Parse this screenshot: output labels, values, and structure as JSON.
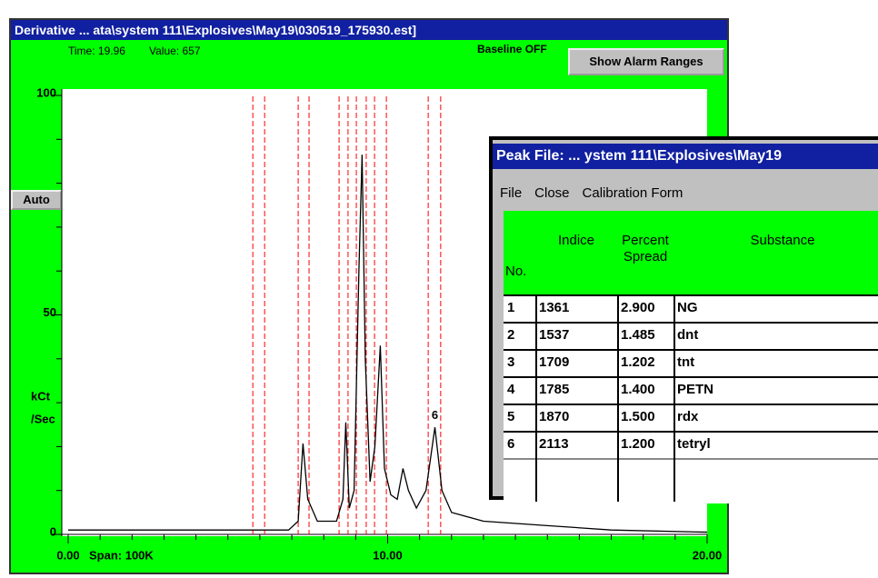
{
  "main_window": {
    "title": "Derivative ... ata\\system 111\\Explosives\\May19\\030519_175930.est]",
    "time_label": "Time: 19.96",
    "value_label": "Value: 657",
    "baseline": "Baseline OFF",
    "alarm_button": "Show Alarm Ranges",
    "auto_button": "Auto",
    "span": "Span: 100K"
  },
  "chart_data": {
    "type": "line",
    "y_label_lines": [
      "kCt",
      "/Sec"
    ],
    "xlim": [
      0,
      20
    ],
    "ylim": [
      0,
      100
    ],
    "xticks": [
      {
        "value": 0,
        "label": "0.00"
      },
      {
        "value": 10,
        "label": "10.00"
      },
      {
        "value": 20,
        "label": "20.00"
      }
    ],
    "xticks_minor": [
      1,
      2,
      3,
      4,
      5,
      6,
      7,
      8,
      9,
      11,
      12,
      13,
      14,
      15,
      16,
      17,
      18,
      19
    ],
    "yticks": [
      0,
      50,
      100
    ],
    "yticks_minor": [
      10,
      20,
      30,
      40,
      60,
      70,
      80,
      90
    ],
    "series": [
      {
        "color": "#000000",
        "x": [
          0,
          5,
          6.9,
          7.2,
          7.35,
          7.5,
          7.8,
          8.4,
          8.6,
          8.69,
          8.8,
          8.95,
          9.1,
          9.2,
          9.3,
          9.45,
          9.6,
          9.77,
          9.9,
          10.1,
          10.3,
          10.48,
          10.65,
          10.9,
          11.2,
          11.48,
          11.7,
          12,
          13,
          15,
          17,
          20
        ],
        "values": [
          1,
          1,
          1,
          3,
          20.7,
          8,
          3,
          3,
          8,
          25.5,
          6,
          10,
          60,
          86.5,
          40,
          12,
          20,
          43,
          15,
          9,
          8,
          15,
          10,
          6,
          10,
          24.4,
          10,
          5,
          3,
          2,
          1,
          0.5
        ]
      }
    ],
    "alarm_color": "#ff0000",
    "alarm_ranges": [
      [
        5.78,
        6.15
      ],
      [
        7.2,
        7.54
      ],
      [
        8.48,
        8.76
      ],
      [
        9.02,
        9.33
      ],
      [
        9.59,
        9.96
      ],
      [
        11.27,
        11.66
      ]
    ],
    "annotations": [
      {
        "text": "6",
        "x": 11.48,
        "y": 27
      }
    ]
  },
  "peak_window": {
    "title": "Peak File:  ... ystem 111\\Explosives\\May19",
    "menu": [
      "File",
      "Close",
      "Calibration Form"
    ],
    "columns": [
      "No.",
      "Indice",
      "Percent Spread",
      "Substance"
    ],
    "rows": [
      [
        "1",
        "1361",
        "2.900",
        "NG"
      ],
      [
        "2",
        "1537",
        "1.485",
        "dnt"
      ],
      [
        "3",
        "1709",
        "1.202",
        "tnt"
      ],
      [
        "4",
        "1785",
        "1.400",
        "PETN"
      ],
      [
        "5",
        "1870",
        "1.500",
        "rdx"
      ],
      [
        "6",
        "2113",
        "1.200",
        "tetryl"
      ]
    ]
  }
}
